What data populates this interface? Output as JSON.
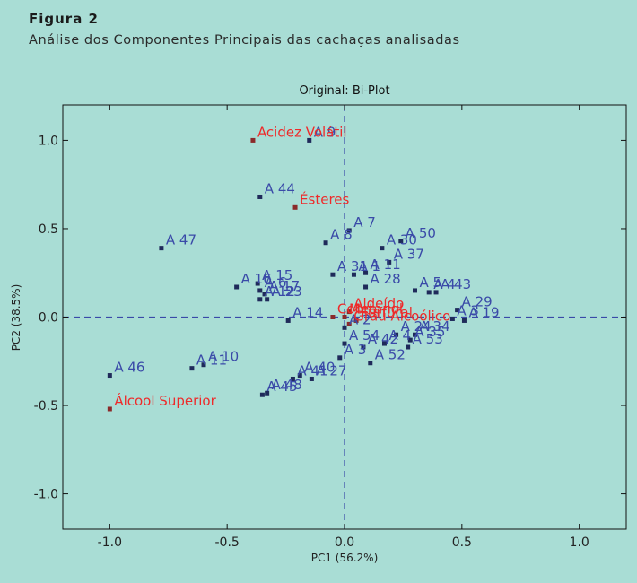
{
  "figure": {
    "label": "Figura 2",
    "caption": "Análise dos Componentes Principais das cachaças analisadas"
  },
  "chart_data": {
    "type": "scatter",
    "title": "Original: Bi-Plot",
    "xlabel": "PC1 (56.2%)",
    "ylabel": "PC2 (38.5%)",
    "xlim": [
      -1.2,
      1.2
    ],
    "ylim": [
      -1.2,
      1.2
    ],
    "xticks": [
      -1.0,
      -0.5,
      0.0,
      0.5,
      1.0
    ],
    "yticks": [
      1.0,
      0.5,
      0.0,
      -0.5,
      -1.0
    ],
    "xtick_labels": [
      "-1.0",
      "-0.5",
      "0.0",
      "0.5",
      "1.0"
    ],
    "ytick_labels": [
      "1.0",
      "0.5",
      "0.0",
      "-0.5",
      "-1.0"
    ],
    "grid": false,
    "reference_lines": {
      "x": 0,
      "y": 0,
      "style": "dashed"
    },
    "colors": {
      "observations": "#3a4aa8",
      "variables": "#ee2a2a",
      "variable_marker": "#8b2a2a",
      "observation_marker": "#1f2a5a"
    },
    "variables": [
      {
        "label": "Acidez Volátil",
        "x": -0.39,
        "y": 1.0
      },
      {
        "label": "Ésteres",
        "x": -0.21,
        "y": 0.62
      },
      {
        "label": "Álcool Superior",
        "x": -1.0,
        "y": -0.52
      },
      {
        "label": "Cobre",
        "x": -0.05,
        "y": 0.0
      },
      {
        "label": "Metanol",
        "x": 0.0,
        "y": 0.0
      },
      {
        "label": "Aldeído",
        "x": 0.02,
        "y": 0.03
      },
      {
        "label": "Furfural",
        "x": 0.05,
        "y": -0.02
      },
      {
        "label": "Grau Alcoólico",
        "x": 0.02,
        "y": -0.04
      }
    ],
    "observations": [
      {
        "label": "A 9",
        "x": -0.15,
        "y": 1.0
      },
      {
        "label": "A 44",
        "x": -0.36,
        "y": 0.68
      },
      {
        "label": "A 47",
        "x": -0.78,
        "y": 0.39
      },
      {
        "label": "A 7",
        "x": 0.02,
        "y": 0.49
      },
      {
        "label": "A 8",
        "x": -0.08,
        "y": 0.42
      },
      {
        "label": "A 50",
        "x": 0.24,
        "y": 0.43
      },
      {
        "label": "A 30",
        "x": 0.16,
        "y": 0.39
      },
      {
        "label": "A 37",
        "x": 0.19,
        "y": 0.31
      },
      {
        "label": "A 31",
        "x": -0.05,
        "y": 0.24
      },
      {
        "label": "A 1",
        "x": 0.04,
        "y": 0.24
      },
      {
        "label": "A 11",
        "x": 0.09,
        "y": 0.25
      },
      {
        "label": "A 16",
        "x": -0.46,
        "y": 0.17
      },
      {
        "label": "A 15",
        "x": -0.37,
        "y": 0.19
      },
      {
        "label": "A 6",
        "x": -0.36,
        "y": 0.15
      },
      {
        "label": "A 17",
        "x": -0.34,
        "y": 0.13
      },
      {
        "label": "A 12",
        "x": -0.36,
        "y": 0.1
      },
      {
        "label": "A 23",
        "x": -0.33,
        "y": 0.1
      },
      {
        "label": "A 28",
        "x": 0.09,
        "y": 0.17
      },
      {
        "label": "A 5",
        "x": 0.3,
        "y": 0.15
      },
      {
        "label": "A 43",
        "x": 0.39,
        "y": 0.14
      },
      {
        "label": "A 4",
        "x": 0.36,
        "y": 0.14
      },
      {
        "label": "A 29",
        "x": 0.48,
        "y": 0.04
      },
      {
        "label": "A 19",
        "x": 0.51,
        "y": -0.02
      },
      {
        "label": "A 3",
        "x": 0.46,
        "y": -0.01
      },
      {
        "label": "A 14",
        "x": -0.24,
        "y": -0.02
      },
      {
        "label": "A 2",
        "x": 0.0,
        "y": -0.06
      },
      {
        "label": "A 24",
        "x": 0.22,
        "y": -0.1
      },
      {
        "label": "A 34",
        "x": 0.3,
        "y": -0.1
      },
      {
        "label": "A 35",
        "x": 0.28,
        "y": -0.13
      },
      {
        "label": "A 4",
        "x": 0.17,
        "y": -0.15
      },
      {
        "label": "A 53",
        "x": 0.27,
        "y": -0.17
      },
      {
        "label": "A 46",
        "x": -1.0,
        "y": -0.33
      },
      {
        "label": "A 10",
        "x": -0.6,
        "y": -0.27
      },
      {
        "label": "A 11",
        "x": -0.65,
        "y": -0.29
      },
      {
        "label": "A 40",
        "x": -0.19,
        "y": -0.33
      },
      {
        "label": "A 27",
        "x": -0.14,
        "y": -0.35
      },
      {
        "label": "A 41",
        "x": -0.22,
        "y": -0.35
      },
      {
        "label": "A 45",
        "x": -0.35,
        "y": -0.44
      },
      {
        "label": "A 48",
        "x": -0.33,
        "y": -0.43
      },
      {
        "label": "A 3",
        "x": -0.02,
        "y": -0.23
      },
      {
        "label": "A 52",
        "x": 0.11,
        "y": -0.26
      },
      {
        "label": "A 54",
        "x": 0.0,
        "y": -0.15
      },
      {
        "label": "A 42",
        "x": 0.08,
        "y": -0.17
      }
    ]
  }
}
